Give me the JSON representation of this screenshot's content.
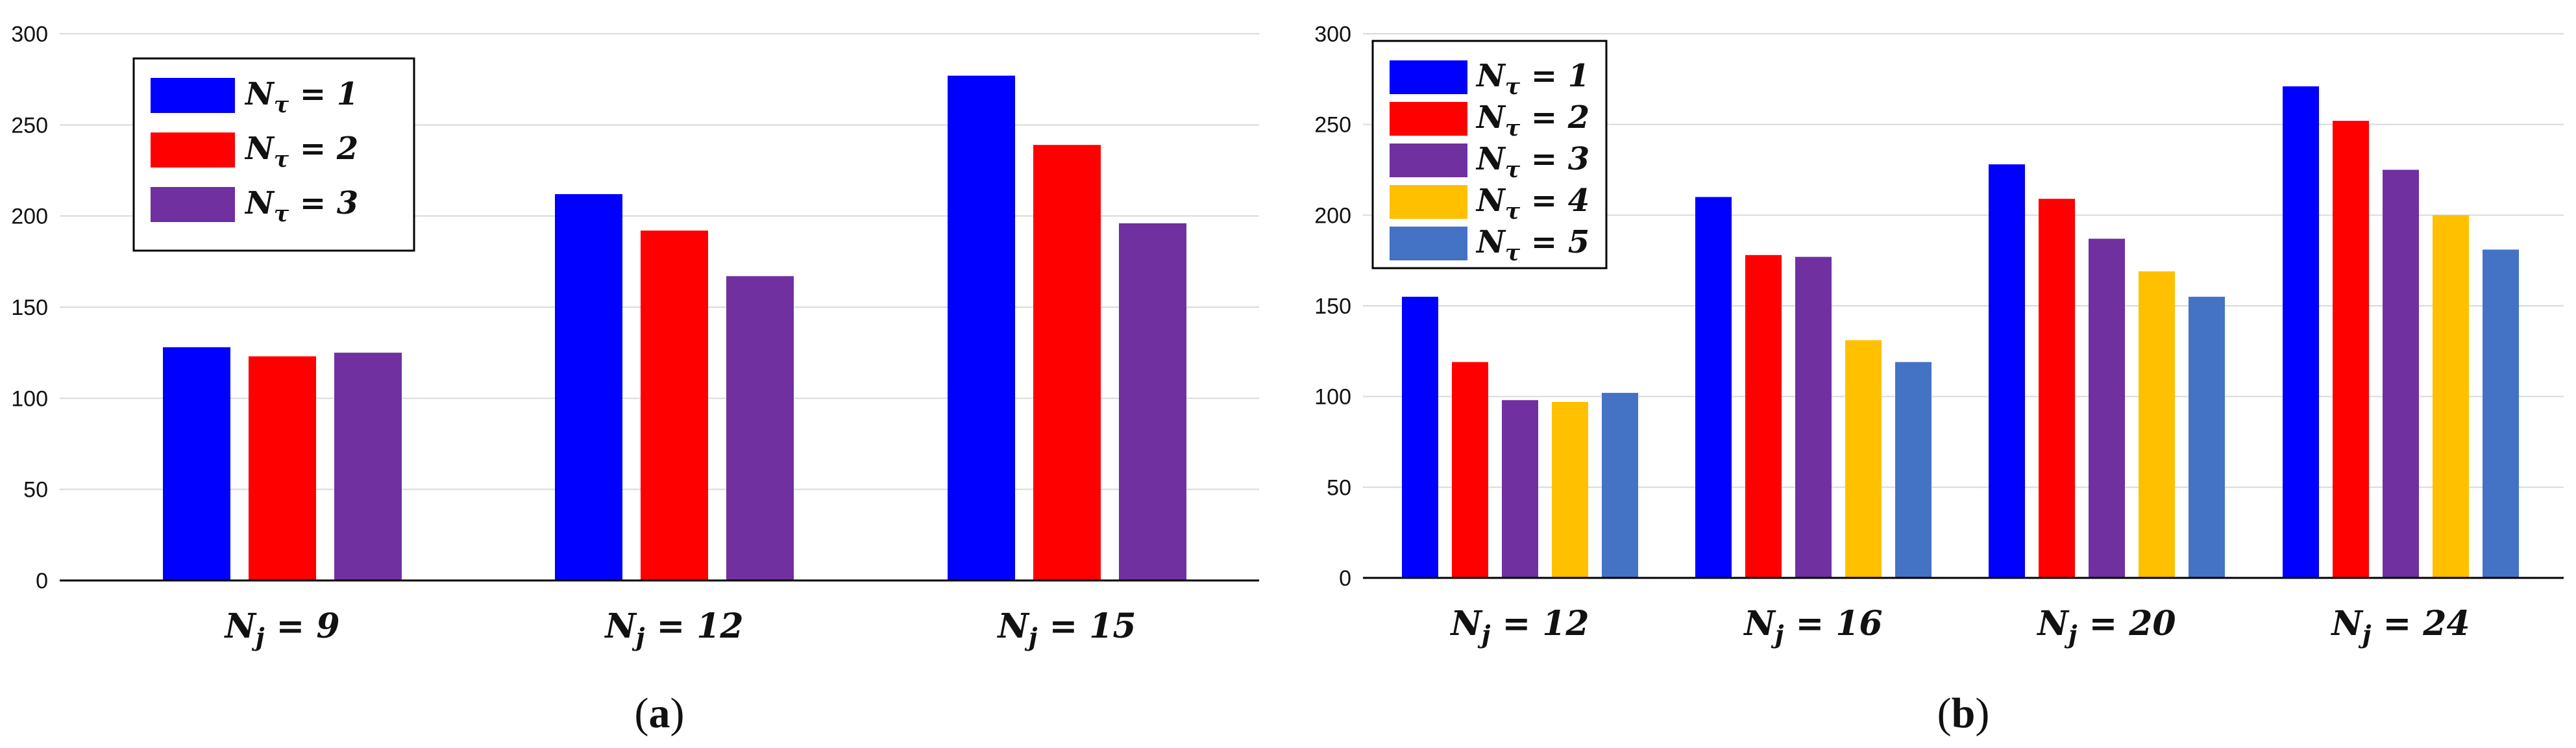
{
  "chart_data": [
    {
      "type": "bar",
      "panel_label": "a",
      "categories": [
        "N_j = 9",
        "N_j = 12",
        "N_j = 15"
      ],
      "category_display": [
        {
          "var": "N",
          "sub": "j",
          "eq": " = 9"
        },
        {
          "var": "N",
          "sub": "j",
          "eq": " = 12"
        },
        {
          "var": "N",
          "sub": "j",
          "eq": " = 15"
        }
      ],
      "series": [
        {
          "name": "N_τ = 1",
          "display": {
            "var": "N",
            "sub": "τ",
            "eq": " = 1"
          },
          "color": "#0000FF",
          "values": [
            128,
            212,
            277
          ]
        },
        {
          "name": "N_τ = 2",
          "display": {
            "var": "N",
            "sub": "τ",
            "eq": " = 2"
          },
          "color": "#FF0000",
          "values": [
            123,
            192,
            239
          ]
        },
        {
          "name": "N_τ = 3",
          "display": {
            "var": "N",
            "sub": "τ",
            "eq": " = 3"
          },
          "color": "#7030A0",
          "values": [
            125,
            167,
            196
          ]
        }
      ],
      "yticks": [
        "0",
        "50",
        "100",
        "150",
        "200",
        "250",
        "300"
      ],
      "ylim": [
        0,
        300
      ],
      "grid": true,
      "legend_position": "top-left",
      "title": "",
      "xlabel": "",
      "ylabel": ""
    },
    {
      "type": "bar",
      "panel_label": "b",
      "categories": [
        "N_j = 12",
        "N_j = 16",
        "N_j = 20",
        "N_j = 24"
      ],
      "category_display": [
        {
          "var": "N",
          "sub": "j",
          "eq": " = 12"
        },
        {
          "var": "N",
          "sub": "j",
          "eq": " = 16"
        },
        {
          "var": "N",
          "sub": "j",
          "eq": " = 20"
        },
        {
          "var": "N",
          "sub": "j",
          "eq": " = 24"
        }
      ],
      "series": [
        {
          "name": "N_τ = 1",
          "display": {
            "var": "N",
            "sub": "τ",
            "eq": " = 1"
          },
          "color": "#0000FF",
          "values": [
            155,
            210,
            228,
            271
          ]
        },
        {
          "name": "N_τ = 2",
          "display": {
            "var": "N",
            "sub": "τ",
            "eq": " = 2"
          },
          "color": "#FF0000",
          "values": [
            119,
            178,
            209,
            252
          ]
        },
        {
          "name": "N_τ = 3",
          "display": {
            "var": "N",
            "sub": "τ",
            "eq": " = 3"
          },
          "color": "#7030A0",
          "values": [
            98,
            177,
            187,
            225
          ]
        },
        {
          "name": "N_τ = 4",
          "display": {
            "var": "N",
            "sub": "τ",
            "eq": " = 4"
          },
          "color": "#FFC000",
          "values": [
            97,
            131,
            169,
            200
          ]
        },
        {
          "name": "N_τ = 5",
          "display": {
            "var": "N",
            "sub": "τ",
            "eq": " = 5"
          },
          "color": "#4472C4",
          "values": [
            102,
            119,
            155,
            181
          ]
        }
      ],
      "yticks": [
        "0",
        "50",
        "100",
        "150",
        "200",
        "250",
        "300"
      ],
      "ylim": [
        0,
        300
      ],
      "grid": true,
      "legend_position": "top-left",
      "title": "",
      "xlabel": "",
      "ylabel": ""
    }
  ],
  "captions": {
    "a": {
      "open": "(",
      "letter": "a",
      "close": ")"
    },
    "b": {
      "open": "(",
      "letter": "b",
      "close": ")"
    }
  }
}
